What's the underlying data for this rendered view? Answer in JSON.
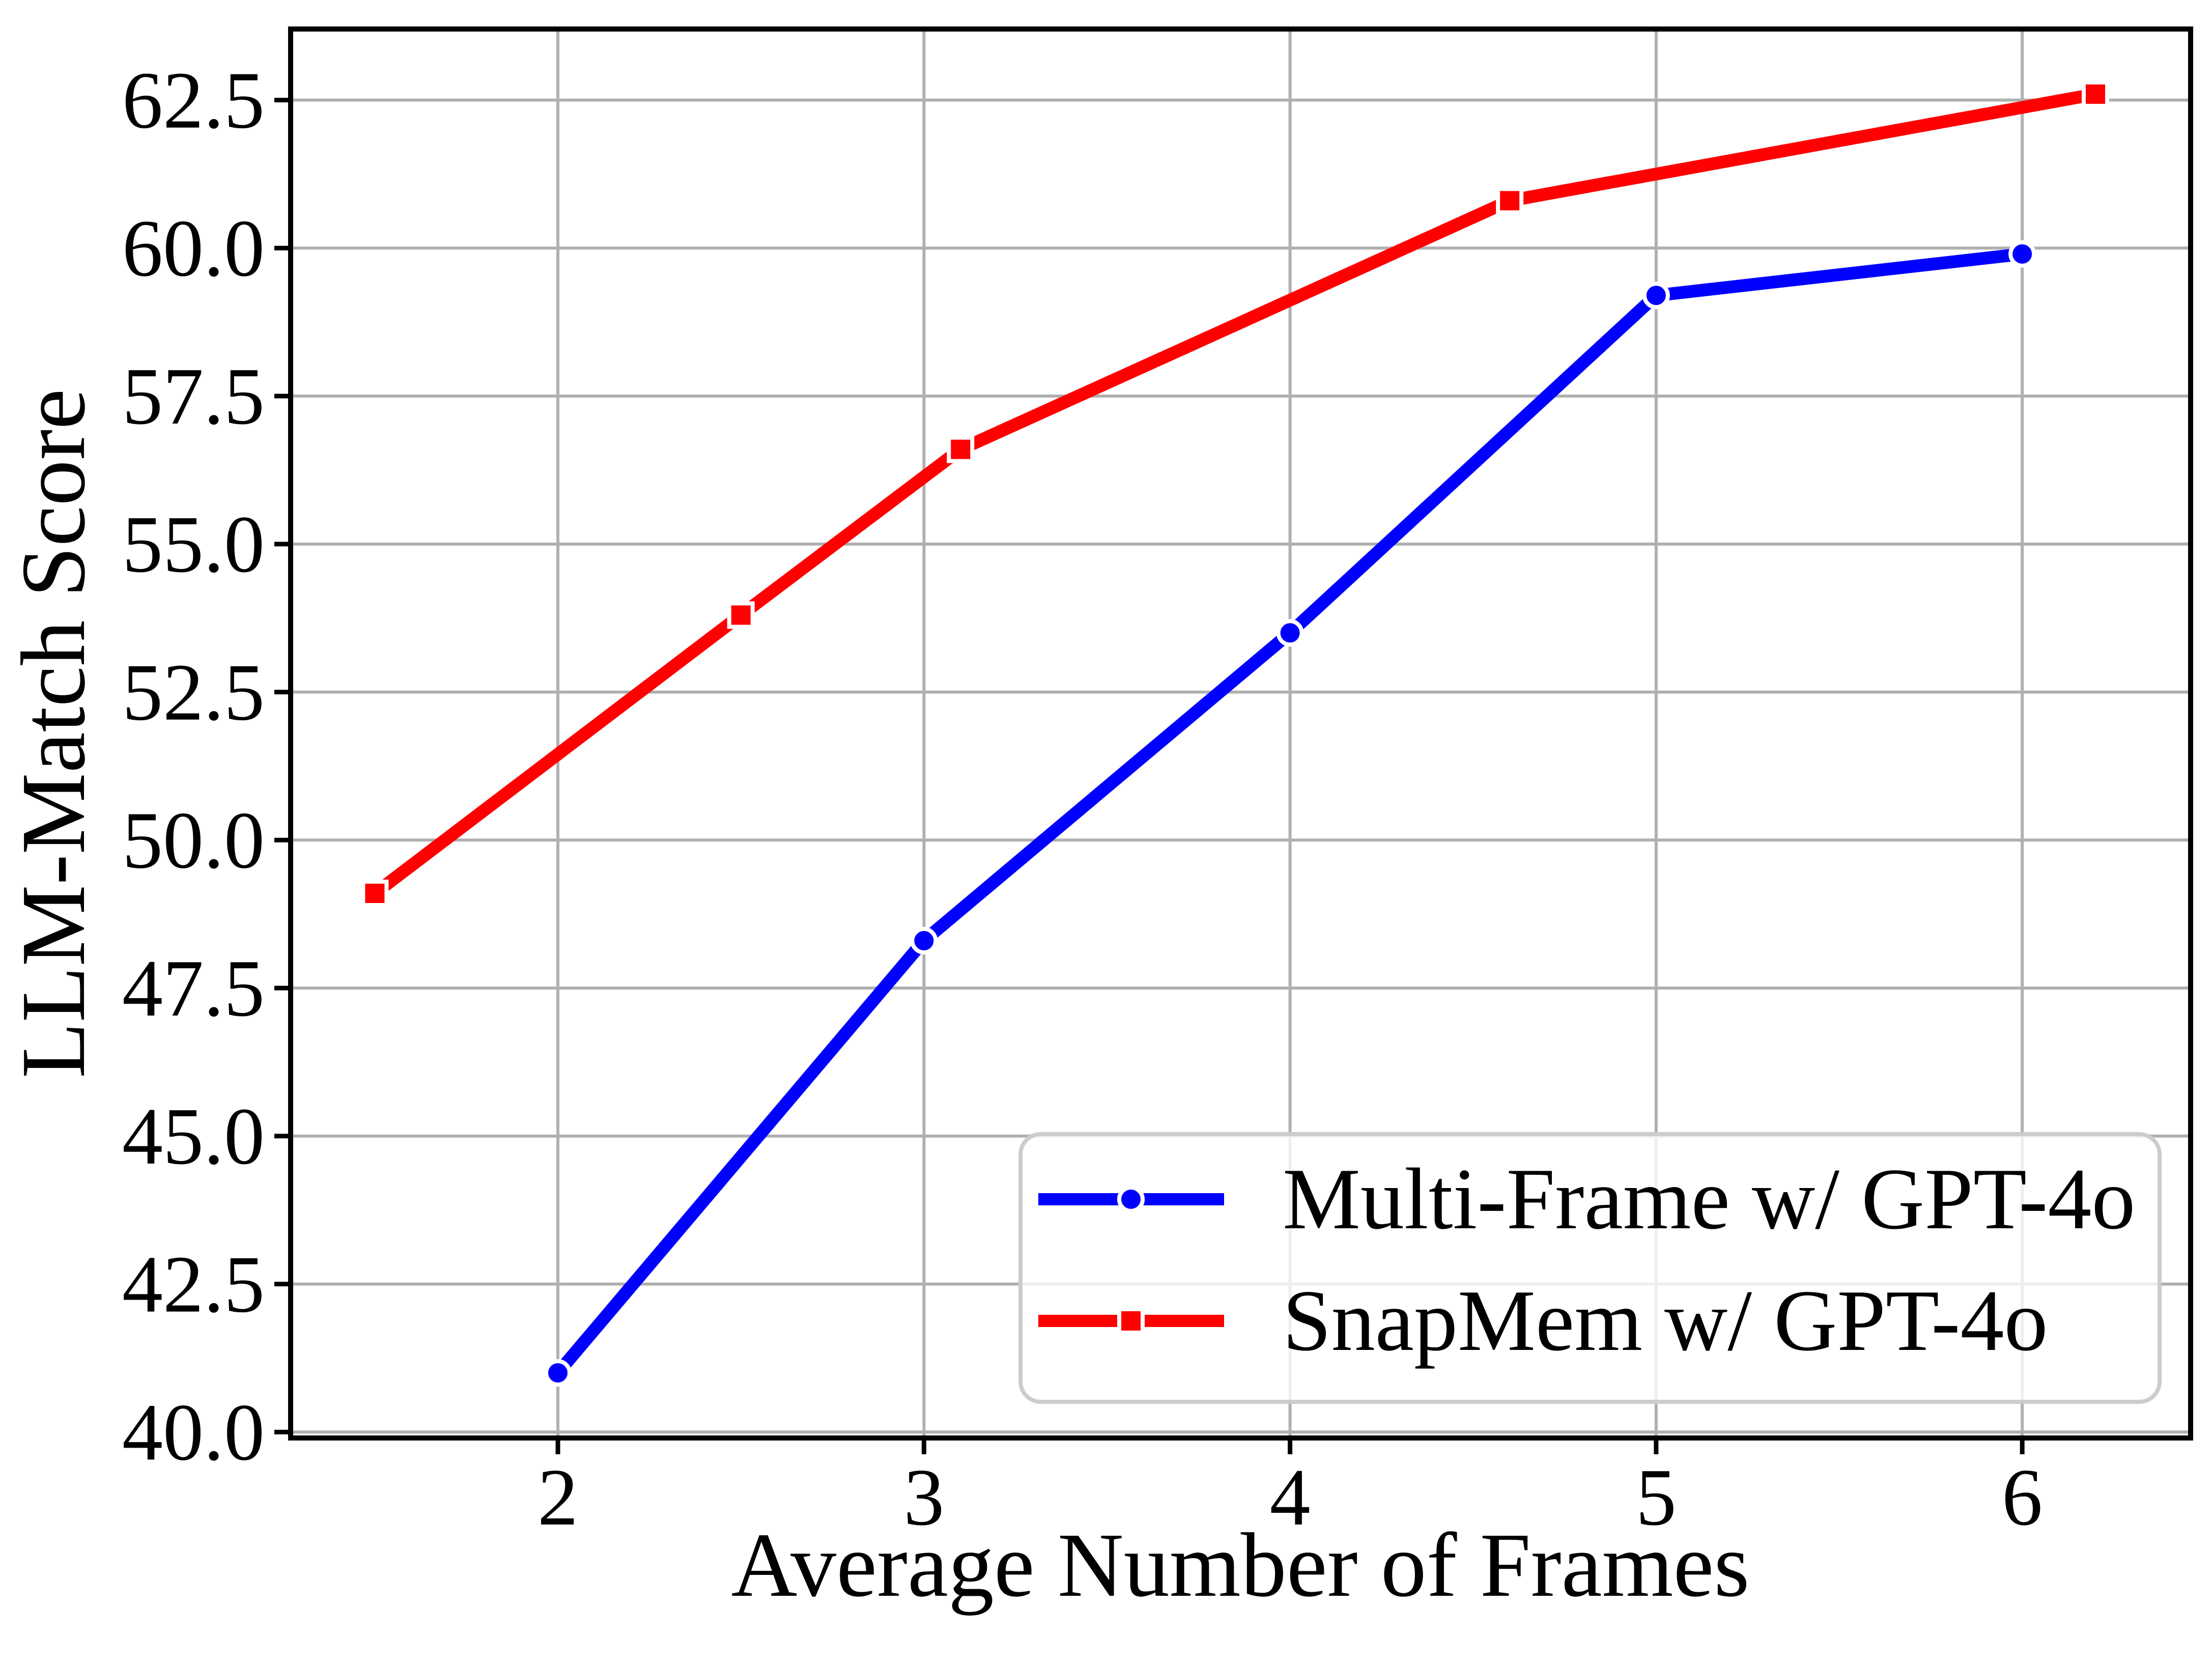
{
  "chart_data": {
    "type": "line",
    "title": "",
    "xlabel": "Average Number of Frames",
    "ylabel": "LLM-Match Score",
    "xlim": [
      1.27,
      6.46
    ],
    "ylim": [
      39.9,
      63.7
    ],
    "xticks": [
      2,
      3,
      4,
      5,
      6
    ],
    "yticks": [
      40.0,
      42.5,
      45.0,
      47.5,
      50.0,
      52.5,
      55.0,
      57.5,
      60.0,
      62.5
    ],
    "grid": true,
    "grid_color": "#b0b0b0",
    "spine_color": "#000000",
    "legend_position": "lower right",
    "series": [
      {
        "name": "Multi-Frame w/ GPT-4o",
        "color": "#0000ff",
        "marker": "circle",
        "x": [
          2,
          3,
          4,
          5,
          6
        ],
        "y": [
          41.0,
          48.3,
          53.5,
          59.2,
          59.9
        ]
      },
      {
        "name": "SnapMem w/ GPT-4o",
        "color": "#ff0000",
        "marker": "square",
        "x": [
          1.5,
          2.5,
          3.1,
          4.6,
          6.2
        ],
        "y": [
          49.1,
          53.8,
          56.6,
          60.8,
          62.6
        ]
      }
    ]
  }
}
